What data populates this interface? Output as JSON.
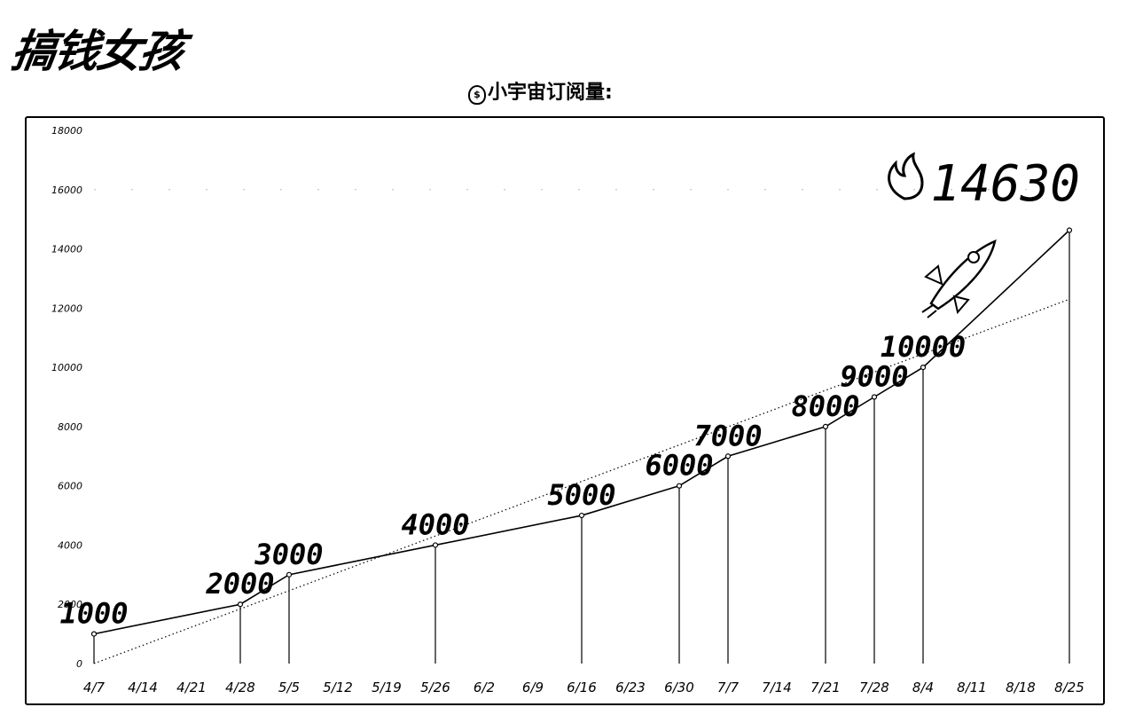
{
  "header": {
    "brand": "搞钱女孩",
    "title_icon": "money-bag-icon",
    "title": "小宇宙订阅量:"
  },
  "chart_data": {
    "type": "line",
    "title": "小宇宙订阅量:",
    "xlabel": "",
    "ylabel": "",
    "ylim": [
      0,
      18000
    ],
    "y_ticks": [
      "0",
      "2000",
      "4000",
      "6000",
      "8000",
      "10000",
      "12000",
      "14000",
      "16000",
      "18000"
    ],
    "x_ticks": [
      "4/7",
      "4/14",
      "4/21",
      "4/28",
      "5/5",
      "5/12",
      "5/19",
      "5/26",
      "6/2",
      "6/9",
      "6/16",
      "6/23",
      "6/30",
      "7/7",
      "7/14",
      "7/21",
      "7/28",
      "8/4",
      "8/11",
      "8/18",
      "8/25"
    ],
    "series": [
      {
        "style": "solid",
        "points": [
          {
            "x": "4/7",
            "y": 1000,
            "label": "1000"
          },
          {
            "x": "4/28",
            "y": 2000,
            "label": "2000"
          },
          {
            "x": "5/5",
            "y": 3000,
            "label": "3000"
          },
          {
            "x": "5/26",
            "y": 4000,
            "label": "4000"
          },
          {
            "x": "6/16",
            "y": 5000,
            "label": "5000"
          },
          {
            "x": "6/30",
            "y": 6000,
            "label": "6000"
          },
          {
            "x": "7/7",
            "y": 7000,
            "label": "7000"
          },
          {
            "x": "7/21",
            "y": 8000,
            "label": "8000"
          },
          {
            "x": "7/28",
            "y": 9000,
            "label": "9000"
          },
          {
            "x": "8/4",
            "y": 10000,
            "label": "10000"
          },
          {
            "x": "8/25",
            "y": 14630,
            "label": "14630"
          }
        ]
      },
      {
        "style": "dotted",
        "points": [
          {
            "x": "4/7",
            "y": 0
          },
          {
            "x": "8/25",
            "y": 12300
          }
        ]
      }
    ],
    "annotations": {
      "highlight_value": "14630",
      "highlight_icon": "fire-icon",
      "decoration_icon": "rocket-icon"
    }
  }
}
